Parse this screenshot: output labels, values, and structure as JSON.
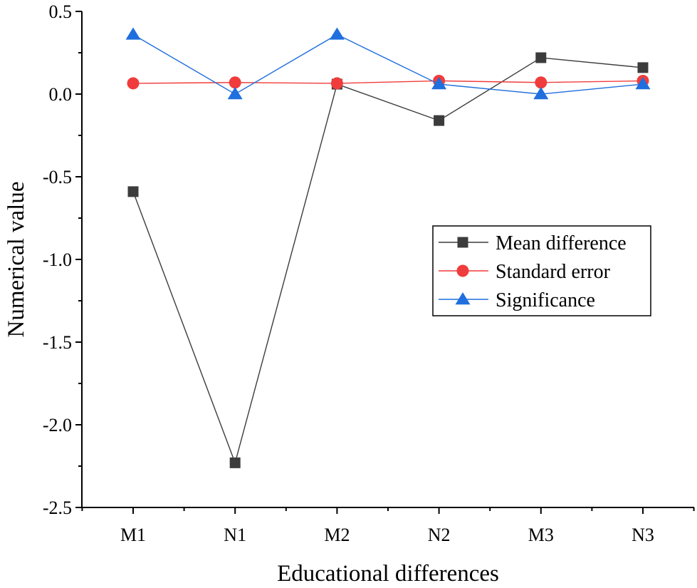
{
  "chart_data": {
    "type": "line",
    "title": "",
    "xlabel": "Educational differences",
    "ylabel": "Numerical value",
    "categories": [
      "M1",
      "N1",
      "M2",
      "N2",
      "M3",
      "N3"
    ],
    "ylim": [
      -2.5,
      0.5
    ],
    "yticks": [
      "0.5",
      "0.0",
      "-0.5",
      "-1.0",
      "-1.5",
      "-2.0",
      "-2.5"
    ],
    "grid": false,
    "legend_position": "center-right",
    "series": [
      {
        "name": "Mean difference",
        "marker": "square",
        "color": "#3c3c3c",
        "values": [
          -0.59,
          -2.23,
          0.06,
          -0.16,
          0.22,
          0.16
        ]
      },
      {
        "name": "Standard error",
        "marker": "circle",
        "color": "#f03c3c",
        "values": [
          0.065,
          0.07,
          0.065,
          0.08,
          0.07,
          0.08
        ]
      },
      {
        "name": "Significance",
        "marker": "triangle",
        "color": "#1f6fde",
        "values": [
          0.36,
          0.0,
          0.36,
          0.06,
          0.0,
          0.06
        ]
      }
    ]
  }
}
